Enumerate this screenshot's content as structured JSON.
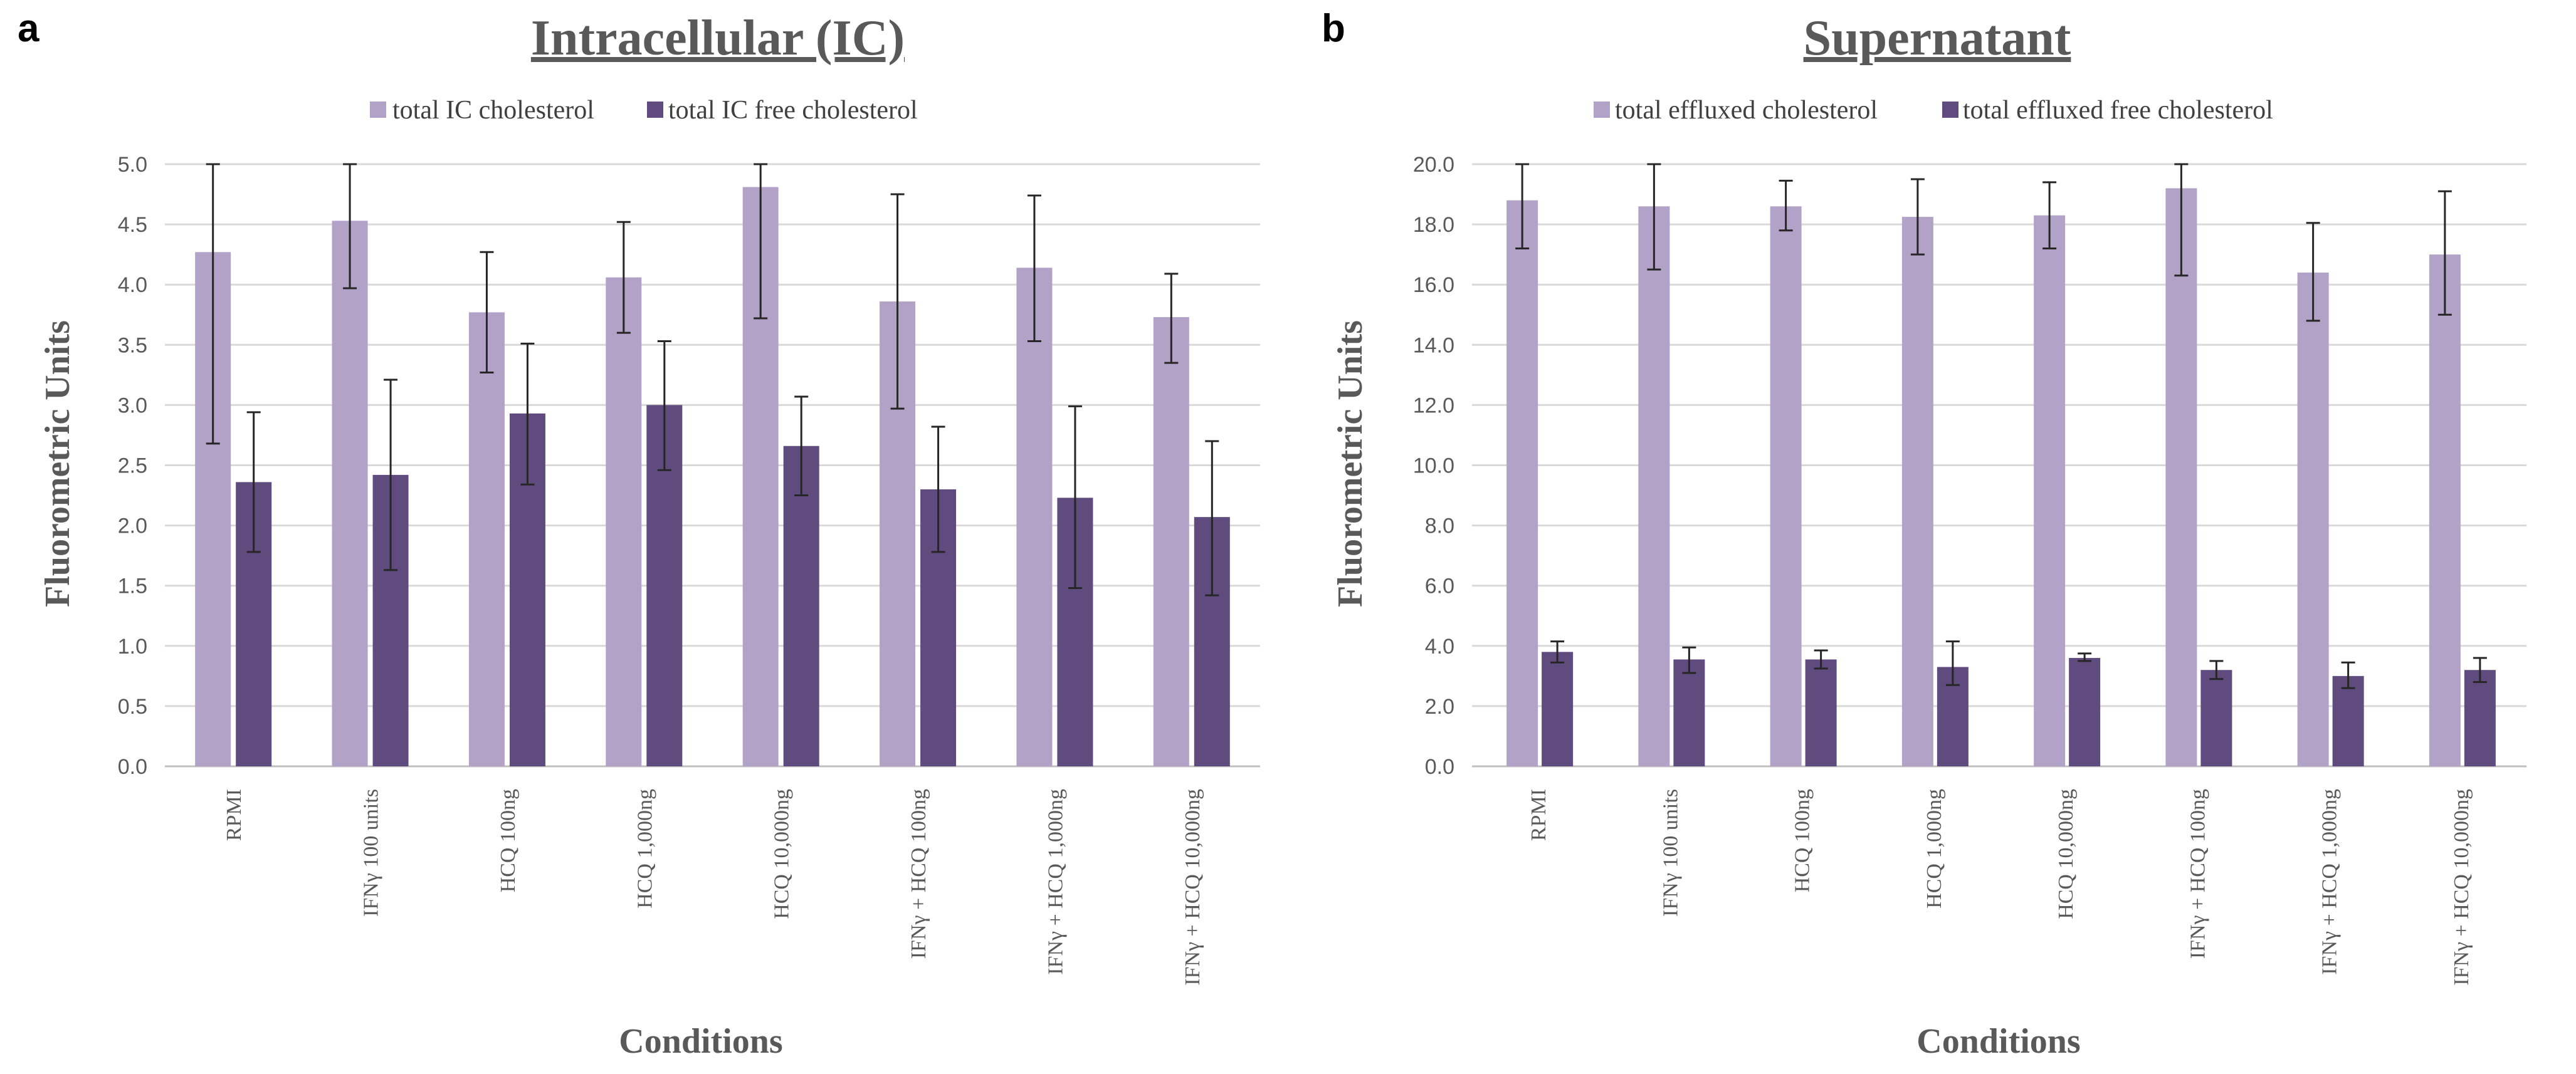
{
  "colors": {
    "light": "#B3A2C7",
    "dark": "#5F4B7D"
  },
  "chart_data": [
    {
      "type": "bar",
      "panel": "a",
      "title": "Intracellular (IC)",
      "xlabel": "Conditions",
      "ylabel": "Fluorometric Units",
      "ylim": [
        0,
        5
      ],
      "ytick_step": 0.5,
      "ytick_decimals": 1,
      "grid": true,
      "legend_position": "top-center",
      "categories": [
        "RPMI",
        "IFNγ 100 units",
        "HCQ 100ng",
        "HCQ 1,000ng",
        "HCQ 10,000ng",
        "IFNγ + HCQ 100ng",
        "IFNγ + HCQ 1,000ng",
        "IFNγ + HCQ 10,000ng"
      ],
      "series": [
        {
          "name": "total IC cholesterol",
          "color": "#B3A2C7",
          "values": [
            4.27,
            4.53,
            3.77,
            4.06,
            4.81,
            3.86,
            4.14,
            3.73
          ],
          "error_low": [
            2.68,
            3.97,
            3.27,
            3.6,
            3.72,
            2.97,
            3.53,
            3.35
          ],
          "error_high": [
            5.0,
            5.0,
            4.27,
            4.52,
            5.0,
            4.75,
            4.74,
            4.09
          ]
        },
        {
          "name": "total IC free cholesterol",
          "color": "#5F4B7D",
          "values": [
            2.36,
            2.42,
            2.93,
            3.0,
            2.66,
            2.3,
            2.23,
            2.07
          ],
          "error_low": [
            1.78,
            1.63,
            2.34,
            2.46,
            2.25,
            1.78,
            1.48,
            1.42
          ],
          "error_high": [
            2.94,
            3.21,
            3.51,
            3.53,
            3.07,
            2.82,
            2.99,
            2.7
          ]
        }
      ]
    },
    {
      "type": "bar",
      "panel": "b",
      "title": "Supernatant",
      "xlabel": "Conditions",
      "ylabel": "Fluorometric Units",
      "ylim": [
        0,
        20
      ],
      "ytick_step": 2,
      "ytick_decimals": 1,
      "grid": true,
      "legend_position": "top-center",
      "categories": [
        "RPMI",
        "IFNγ 100 units",
        "HCQ 100ng",
        "HCQ 1,000ng",
        "HCQ 10,000ng",
        "IFNγ + HCQ 100ng",
        "IFNγ + HCQ 1,000ng",
        "IFNγ + HCQ 10,000ng"
      ],
      "series": [
        {
          "name": "total effluxed cholesterol",
          "color": "#B3A2C7",
          "values": [
            18.8,
            18.6,
            18.6,
            18.25,
            18.3,
            19.2,
            16.4,
            17.0
          ],
          "error_low": [
            17.2,
            16.5,
            17.8,
            17.0,
            17.2,
            16.3,
            14.8,
            15.0
          ],
          "error_high": [
            20.0,
            20.0,
            19.45,
            19.5,
            19.4,
            20.0,
            18.05,
            19.1
          ]
        },
        {
          "name": "total effluxed free cholesterol",
          "color": "#5F4B7D",
          "values": [
            3.8,
            3.55,
            3.55,
            3.3,
            3.6,
            3.2,
            3.0,
            3.2
          ],
          "error_low": [
            3.45,
            3.1,
            3.25,
            2.7,
            3.5,
            2.9,
            2.6,
            2.8
          ],
          "error_high": [
            4.15,
            3.95,
            3.85,
            4.15,
            3.75,
            3.5,
            3.45,
            3.6
          ]
        }
      ]
    }
  ]
}
